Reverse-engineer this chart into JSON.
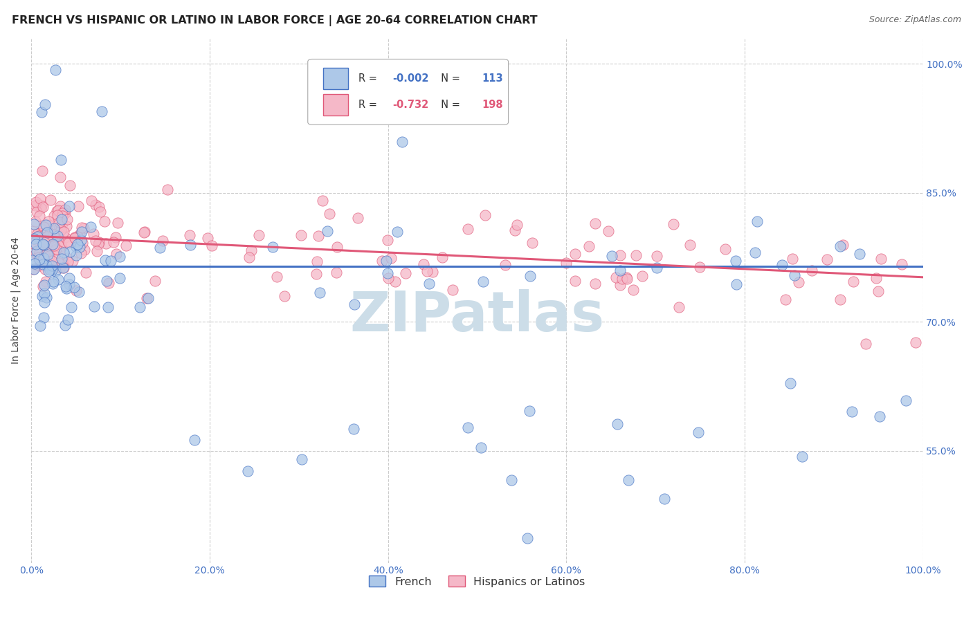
{
  "title": "FRENCH VS HISPANIC OR LATINO IN LABOR FORCE | AGE 20-64 CORRELATION CHART",
  "source": "Source: ZipAtlas.com",
  "ylabel": "In Labor Force | Age 20-64",
  "ytick_labels": [
    "55.0%",
    "70.0%",
    "85.0%",
    "100.0%"
  ],
  "ytick_values": [
    0.55,
    0.7,
    0.85,
    1.0
  ],
  "xtick_values": [
    0.0,
    0.2,
    0.4,
    0.6,
    0.8,
    1.0
  ],
  "xtick_labels": [
    "0.0%",
    "20.0%",
    "40.0%",
    "60.0%",
    "80.0%",
    "100.0%"
  ],
  "xlim": [
    0.0,
    1.0
  ],
  "ylim": [
    0.42,
    1.03
  ],
  "legend_r_french": "-0.002",
  "legend_n_french": "113",
  "legend_r_hispanic": "-0.732",
  "legend_n_hispanic": "198",
  "french_color": "#adc8e8",
  "french_line_color": "#4472c4",
  "hispanic_color": "#f5b8c8",
  "hispanic_line_color": "#e05878",
  "watermark": "ZIPatlas",
  "watermark_color": "#ccdde8",
  "french_trend_start": 0.765,
  "french_trend_end": 0.765,
  "hispanic_trend_start": 0.8,
  "hispanic_trend_end": 0.752,
  "tick_color": "#4472c4",
  "bottom_legend_labels": [
    "French",
    "Hispanics or Latinos"
  ]
}
